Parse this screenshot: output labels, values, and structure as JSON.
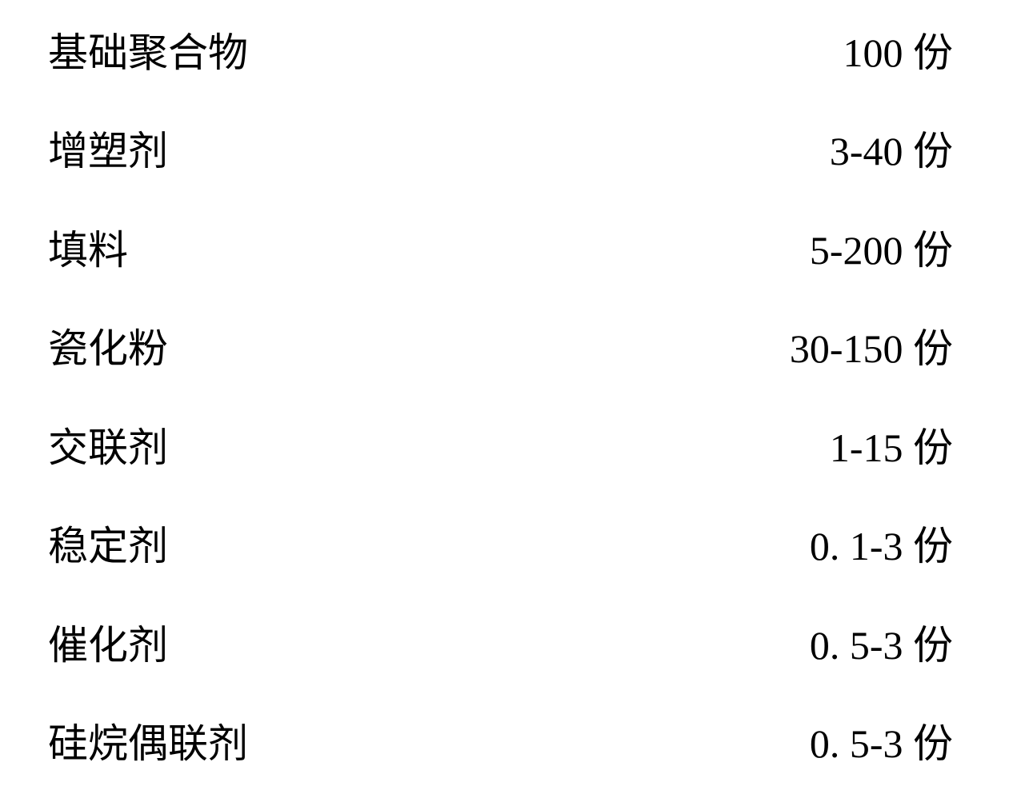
{
  "styling": {
    "fontSize": "50px",
    "fontFamily": "\"KaiTi\", \"STKaiti\", \"SimSun\", \"Songti SC\", serif",
    "textColor": "#000000",
    "backgroundColor": "#ffffff",
    "rowHeight": "123.5px"
  },
  "rows": [
    {
      "label": "基础聚合物",
      "value": "100 份"
    },
    {
      "label": "增塑剂",
      "value": "3-40 份"
    },
    {
      "label": "填料",
      "value": "5-200 份"
    },
    {
      "label": "瓷化粉",
      "value": "30-150 份"
    },
    {
      "label": "交联剂",
      "value": "1-15 份"
    },
    {
      "label": "稳定剂",
      "value": "0. 1-3 份"
    },
    {
      "label": "催化剂",
      "value": "0. 5-3 份"
    },
    {
      "label": "硅烷偶联剂",
      "value": "0. 5-3 份"
    }
  ]
}
